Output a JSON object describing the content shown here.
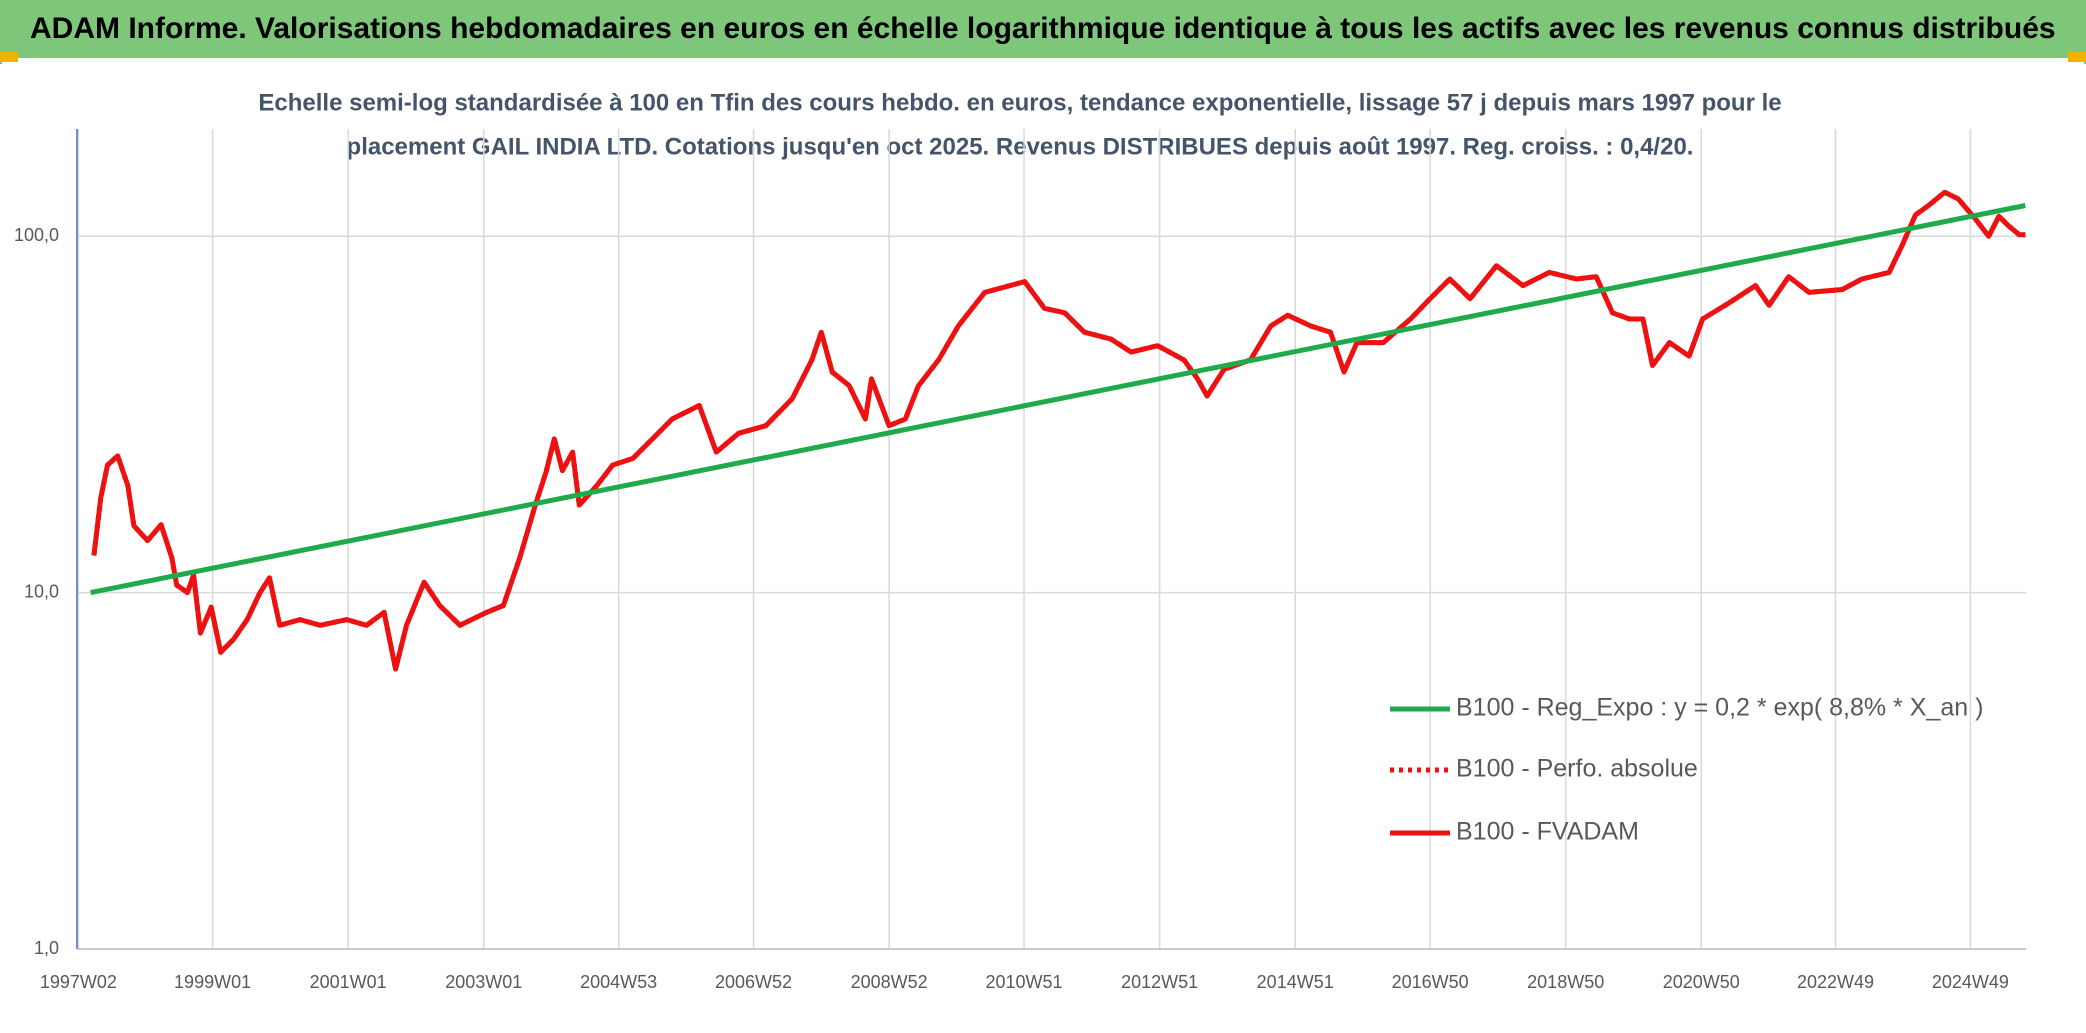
{
  "chart_data": {
    "type": "line",
    "title": "ADAM Informe. Valorisations hebdomadaires en euros en échelle logarithmique identique à tous les actifs avec les revenus connus distribués",
    "subtitle": [
      "Echelle semi-log standardisée à 100 en Tfin des cours hebdo. en euros, tendance exponentielle, lissage 57 j depuis mars 1997 pour le",
      "placement GAIL INDIA LTD. Cotations jusqu'en oct 2025. Revenus DISTRIBUES depuis août 1997. Reg. croiss. : 0,4/20."
    ],
    "log_y": true,
    "grid": true,
    "legend": "lower right",
    "xlim": [
      1997.0,
      2025.75
    ],
    "xticks": [
      {
        "value": 1997.02,
        "label": "1997W02"
      },
      {
        "value": 1999.0,
        "label": "1999W01"
      },
      {
        "value": 2001.0,
        "label": "2001W01"
      },
      {
        "value": 2003.0,
        "label": "2003W01"
      },
      {
        "value": 2004.99,
        "label": "2004W53"
      },
      {
        "value": 2006.98,
        "label": "2006W52"
      },
      {
        "value": 2008.98,
        "label": "2008W52"
      },
      {
        "value": 2010.97,
        "label": "2010W51"
      },
      {
        "value": 2012.97,
        "label": "2012W51"
      },
      {
        "value": 2014.97,
        "label": "2014W51"
      },
      {
        "value": 2016.96,
        "label": "2016W50"
      },
      {
        "value": 2018.96,
        "label": "2018W50"
      },
      {
        "value": 2020.96,
        "label": "2020W50"
      },
      {
        "value": 2022.94,
        "label": "2022W49"
      },
      {
        "value": 2024.93,
        "label": "2024W49"
      }
    ],
    "ylim": [
      1,
      200
    ],
    "yticks": [
      {
        "value": 1,
        "label": "1,0"
      },
      {
        "value": 10,
        "label": "10,0"
      },
      {
        "value": 100,
        "label": "100,0"
      }
    ],
    "series": [
      {
        "name": "B100 - Reg_Expo : y = 0,2 * exp( 8,8% *  X_an )",
        "color": "#1faa4b",
        "style": "solid",
        "x": [
          1997.2,
          2025.74
        ],
        "values": [
          10,
          122
        ]
      },
      {
        "name": "B100 - Perfo. absolue",
        "color": "#ee1111",
        "style": "dotted",
        "x": [
          1997.25,
          1997.35,
          1997.45,
          1997.6,
          1997.75,
          1997.84,
          1998.04,
          1998.24,
          1998.4,
          1998.47,
          1998.63,
          1998.72,
          1998.82,
          1998.98,
          1999.12,
          1999.31,
          1999.51,
          1999.7,
          1999.84,
          1999.99,
          2000.29,
          2000.59,
          2000.98,
          2001.27,
          2001.53,
          2001.7,
          2001.86,
          2002.12,
          2002.35,
          2002.65,
          2003.04,
          2003.29,
          2003.53,
          2003.76,
          2003.92,
          2004.04,
          2004.16,
          2004.31,
          2004.41,
          2004.67,
          2004.9,
          2005.2,
          2005.49,
          2005.78,
          2006.18,
          2006.43,
          2006.76,
          2007.16,
          2007.55,
          2007.84,
          2007.98,
          2008.14,
          2008.39,
          2008.63,
          2008.72,
          2008.98,
          2009.22,
          2009.41,
          2009.71,
          2010.0,
          2010.39,
          2010.98,
          2011.27,
          2011.57,
          2011.86,
          2012.25,
          2012.55,
          2012.94,
          2013.33,
          2013.53,
          2013.67,
          2013.92,
          2014.31,
          2014.61,
          2014.86,
          2015.2,
          2015.49,
          2015.69,
          2015.88,
          2016.27,
          2016.67,
          2016.96,
          2017.25,
          2017.55,
          2017.94,
          2018.33,
          2018.72,
          2019.12,
          2019.41,
          2019.65,
          2019.9,
          2020.1,
          2020.24,
          2020.49,
          2020.78,
          2020.98,
          2021.37,
          2021.76,
          2021.96,
          2022.25,
          2022.55,
          2023.04,
          2023.33,
          2023.73,
          2023.92,
          2024.12,
          2024.31,
          2024.55,
          2024.75,
          2025.0,
          2025.2,
          2025.35,
          2025.49,
          2025.65,
          2025.74
        ],
        "values": [
          12.7,
          18.4,
          22.8,
          24.2,
          20,
          15.4,
          14,
          15.5,
          12.5,
          10.5,
          10,
          11.2,
          7.7,
          9.1,
          6.8,
          7.4,
          8.4,
          10,
          11,
          8.1,
          8.4,
          8.1,
          8.4,
          8.1,
          8.8,
          6.1,
          8.1,
          10.7,
          9.2,
          8.1,
          8.8,
          9.2,
          12.5,
          17.6,
          21.8,
          27,
          22,
          24.8,
          17.6,
          20,
          22.8,
          23.8,
          27,
          30.7,
          33.5,
          24.8,
          28,
          29.4,
          35,
          45,
          53.8,
          41.6,
          38.1,
          30.7,
          39.8,
          29.4,
          30.7,
          38,
          45,
          56,
          69.6,
          74.6,
          62.8,
          61,
          53.8,
          51.5,
          47.3,
          49.3,
          45,
          39.8,
          35.6,
          42.3,
          45,
          56,
          60,
          56,
          53.8,
          41.6,
          50.3,
          50.3,
          58.6,
          66.8,
          75.9,
          66.8,
          82.7,
          72.7,
          79.2,
          75.9,
          77,
          61,
          58.6,
          58.6,
          43.4,
          50.3,
          46.1,
          58.6,
          65,
          72.7,
          64,
          77,
          69.6,
          70.9,
          75.9,
          79.2,
          94,
          114.8,
          121.9,
          132.9,
          127.3,
          112,
          100,
          113.8,
          107.1,
          101,
          101
        ]
      },
      {
        "name": "B100 - FVADAM",
        "color": "#ee1111",
        "style": "solid",
        "x": [
          1997.25,
          1997.35,
          1997.45,
          1997.6,
          1997.75,
          1997.84,
          1998.04,
          1998.24,
          1998.4,
          1998.47,
          1998.63,
          1998.72,
          1998.82,
          1998.98,
          1999.12,
          1999.31,
          1999.51,
          1999.7,
          1999.84,
          1999.99,
          2000.29,
          2000.59,
          2000.98,
          2001.27,
          2001.53,
          2001.7,
          2001.86,
          2002.12,
          2002.35,
          2002.65,
          2003.04,
          2003.29,
          2003.53,
          2003.76,
          2003.92,
          2004.04,
          2004.16,
          2004.31,
          2004.41,
          2004.67,
          2004.9,
          2005.2,
          2005.49,
          2005.78,
          2006.18,
          2006.43,
          2006.76,
          2007.16,
          2007.55,
          2007.84,
          2007.98,
          2008.14,
          2008.39,
          2008.63,
          2008.72,
          2008.98,
          2009.22,
          2009.41,
          2009.71,
          2010.0,
          2010.39,
          2010.98,
          2011.27,
          2011.57,
          2011.86,
          2012.25,
          2012.55,
          2012.94,
          2013.33,
          2013.53,
          2013.67,
          2013.92,
          2014.31,
          2014.61,
          2014.86,
          2015.2,
          2015.49,
          2015.69,
          2015.88,
          2016.27,
          2016.67,
          2016.96,
          2017.25,
          2017.55,
          2017.94,
          2018.33,
          2018.72,
          2019.12,
          2019.41,
          2019.65,
          2019.9,
          2020.1,
          2020.24,
          2020.49,
          2020.78,
          2020.98,
          2021.37,
          2021.76,
          2021.96,
          2022.25,
          2022.55,
          2023.04,
          2023.33,
          2023.73,
          2023.92,
          2024.12,
          2024.31,
          2024.55,
          2024.75,
          2025.0,
          2025.2,
          2025.35,
          2025.49,
          2025.65,
          2025.74
        ],
        "values": [
          12.7,
          18.4,
          22.8,
          24.2,
          20,
          15.4,
          14,
          15.5,
          12.5,
          10.5,
          10,
          11.2,
          7.7,
          9.1,
          6.8,
          7.4,
          8.4,
          10,
          11,
          8.1,
          8.4,
          8.1,
          8.4,
          8.1,
          8.8,
          6.1,
          8.1,
          10.7,
          9.2,
          8.1,
          8.8,
          9.2,
          12.5,
          17.6,
          21.8,
          27,
          22,
          24.8,
          17.6,
          20,
          22.8,
          23.8,
          27,
          30.7,
          33.5,
          24.8,
          28,
          29.4,
          35,
          45,
          53.8,
          41.6,
          38.1,
          30.7,
          39.8,
          29.4,
          30.7,
          38,
          45,
          56,
          69.6,
          74.6,
          62.8,
          61,
          53.8,
          51.5,
          47.3,
          49.3,
          45,
          39.8,
          35.6,
          42.3,
          45,
          56,
          60,
          56,
          53.8,
          41.6,
          50.3,
          50.3,
          58.6,
          66.8,
          75.9,
          66.8,
          82.7,
          72.7,
          79.2,
          75.9,
          77,
          61,
          58.6,
          58.6,
          43.4,
          50.3,
          46.1,
          58.6,
          65,
          72.7,
          64,
          77,
          69.6,
          70.9,
          75.9,
          79.2,
          94,
          114.8,
          121.9,
          132.9,
          127.3,
          112,
          100,
          113.8,
          107.1,
          101,
          101
        ]
      }
    ]
  }
}
